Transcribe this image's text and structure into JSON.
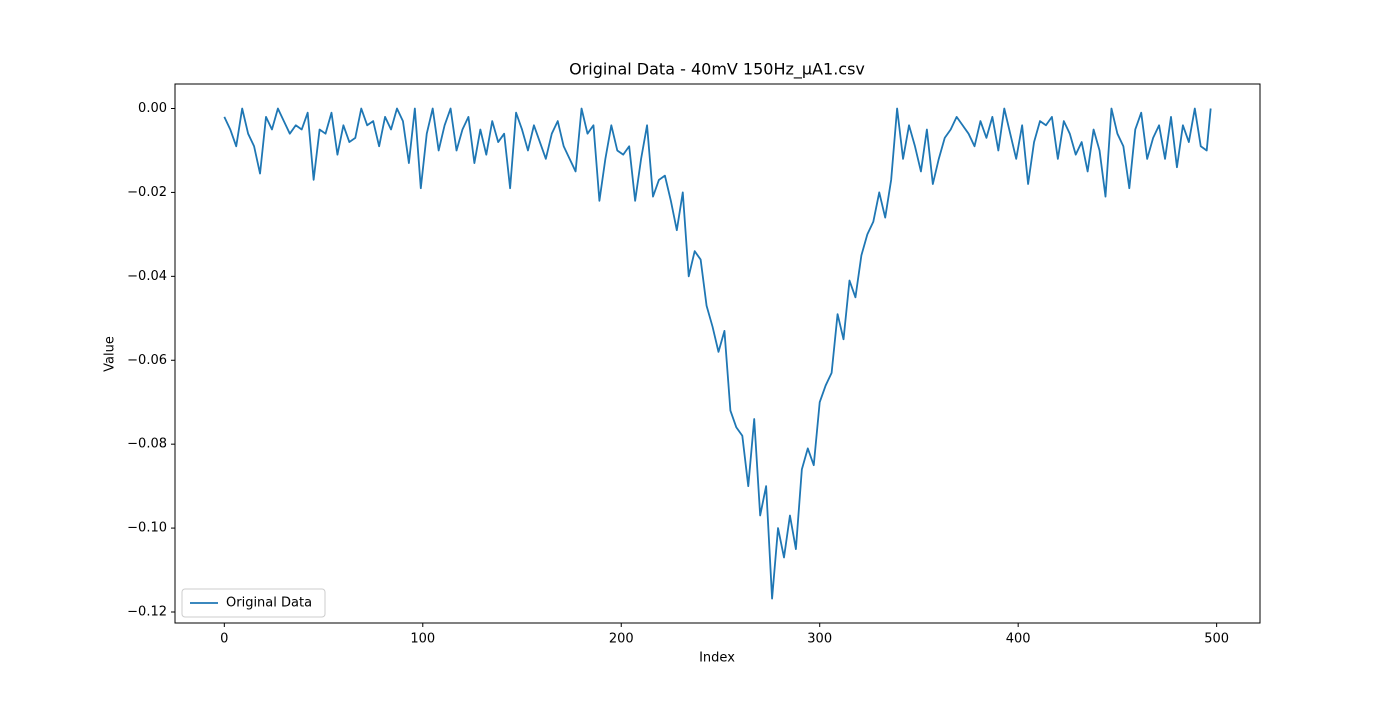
{
  "chart_data": {
    "type": "line",
    "title": "Original Data - 40mV 150Hz_µA1.csv",
    "x_label": "Index",
    "y_label": "Value",
    "x": [
      0,
      3,
      6,
      9,
      12,
      15,
      18,
      21,
      24,
      27,
      30,
      33,
      36,
      39,
      42,
      45,
      48,
      51,
      54,
      57,
      60,
      63,
      66,
      69,
      72,
      75,
      78,
      81,
      84,
      87,
      90,
      93,
      96,
      99,
      102,
      105,
      108,
      111,
      114,
      117,
      120,
      123,
      126,
      129,
      132,
      135,
      138,
      141,
      144,
      147,
      150,
      153,
      156,
      159,
      162,
      165,
      168,
      171,
      174,
      177,
      180,
      183,
      186,
      189,
      192,
      195,
      198,
      201,
      204,
      207,
      210,
      213,
      216,
      219,
      222,
      225,
      228,
      231,
      234,
      237,
      240,
      243,
      246,
      249,
      252,
      255,
      258,
      261,
      264,
      267,
      270,
      273,
      276,
      279,
      282,
      285,
      288,
      291,
      294,
      297,
      300,
      303,
      306,
      309,
      312,
      315,
      318,
      321,
      324,
      327,
      330,
      333,
      336,
      339,
      342,
      345,
      348,
      351,
      354,
      357,
      360,
      363,
      366,
      369,
      372,
      375,
      378,
      381,
      384,
      387,
      390,
      393,
      396,
      399,
      402,
      405,
      408,
      411,
      414,
      417,
      420,
      423,
      426,
      429,
      432,
      435,
      438,
      441,
      444,
      447,
      450,
      453,
      456,
      459,
      462,
      465,
      468,
      471,
      474,
      477,
      480,
      483,
      486,
      489,
      492,
      495,
      497
    ],
    "series": [
      {
        "name": "Original Data",
        "color": "#1f77b4",
        "values": [
          -0.002,
          -0.005,
          -0.009,
          0,
          -0.006,
          -0.009,
          -0.0155,
          -0.002,
          -0.005,
          0,
          -0.003,
          -0.006,
          -0.004,
          -0.005,
          -0.001,
          -0.017,
          -0.005,
          -0.006,
          -0.001,
          -0.011,
          -0.004,
          -0.008,
          -0.007,
          0,
          -0.004,
          -0.003,
          -0.009,
          -0.002,
          -0.005,
          0,
          -0.003,
          -0.013,
          0,
          -0.019,
          -0.006,
          0,
          -0.01,
          -0.004,
          0,
          -0.01,
          -0.005,
          -0.002,
          -0.013,
          -0.005,
          -0.011,
          -0.003,
          -0.008,
          -0.006,
          -0.019,
          -0.001,
          -0.005,
          -0.01,
          -0.004,
          -0.008,
          -0.012,
          -0.006,
          -0.003,
          -0.009,
          -0.012,
          -0.015,
          0,
          -0.006,
          -0.004,
          -0.022,
          -0.012,
          -0.004,
          -0.01,
          -0.011,
          -0.009,
          -0.022,
          -0.012,
          -0.004,
          -0.021,
          -0.017,
          -0.016,
          -0.022,
          -0.029,
          -0.02,
          -0.04,
          -0.034,
          -0.036,
          -0.047,
          -0.052,
          -0.058,
          -0.053,
          -0.072,
          -0.076,
          -0.078,
          -0.09,
          -0.074,
          -0.097,
          -0.09,
          -0.1168,
          -0.1,
          -0.107,
          -0.097,
          -0.105,
          -0.086,
          -0.081,
          -0.085,
          -0.07,
          -0.066,
          -0.063,
          -0.049,
          -0.055,
          -0.041,
          -0.045,
          -0.035,
          -0.03,
          -0.027,
          -0.02,
          -0.026,
          -0.017,
          0,
          -0.012,
          -0.004,
          -0.009,
          -0.015,
          -0.005,
          -0.018,
          -0.012,
          -0.007,
          -0.005,
          -0.002,
          -0.004,
          -0.006,
          -0.009,
          -0.003,
          -0.007,
          -0.002,
          -0.01,
          0,
          -0.006,
          -0.012,
          -0.004,
          -0.018,
          -0.008,
          -0.003,
          -0.004,
          -0.002,
          -0.012,
          -0.003,
          -0.006,
          -0.011,
          -0.008,
          -0.015,
          -0.005,
          -0.01,
          -0.021,
          0,
          -0.006,
          -0.009,
          -0.019,
          -0.005,
          -0.001,
          -0.012,
          -0.007,
          -0.004,
          -0.012,
          -0.002,
          -0.014,
          -0.004,
          -0.008,
          0,
          -0.009,
          -0.01,
          0
        ]
      }
    ],
    "xlim": [
      -24.85,
      521.85
    ],
    "xticks": [
      0,
      100,
      200,
      300,
      400,
      500
    ],
    "ylim": [
      -0.12262,
      0.00584
    ],
    "yticks": [
      {
        "value": -0.12,
        "label": "−0.12"
      },
      {
        "value": -0.1,
        "label": "−0.10"
      },
      {
        "value": -0.08,
        "label": "−0.08"
      },
      {
        "value": -0.06,
        "label": "−0.06"
      },
      {
        "value": -0.04,
        "label": "−0.04"
      },
      {
        "value": -0.02,
        "label": "−0.02"
      },
      {
        "value": 0,
        "label": "0.00"
      }
    ],
    "legend": "lower left",
    "grid": false
  }
}
